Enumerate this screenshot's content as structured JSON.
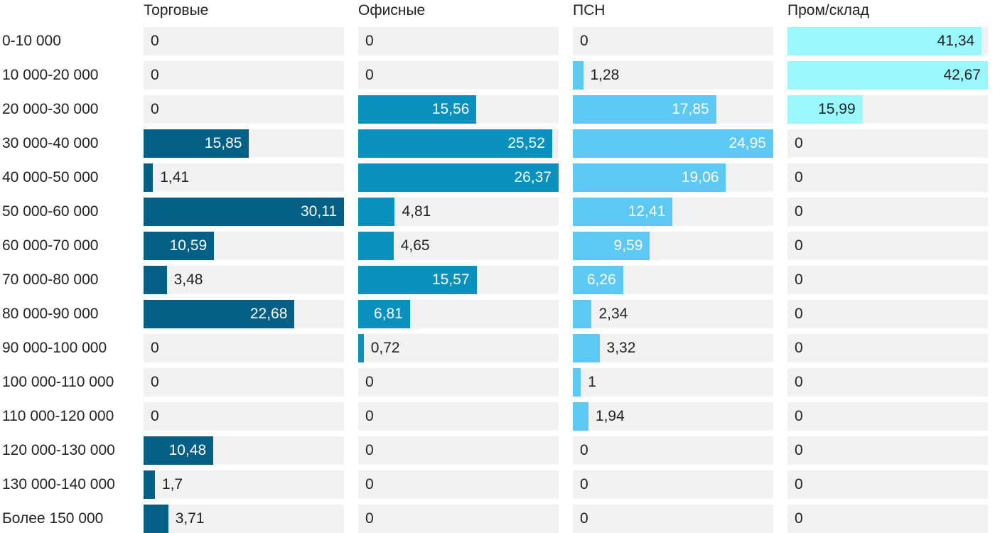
{
  "chart_data": {
    "type": "bar",
    "orientation": "horizontal",
    "layout": "small-multiples",
    "value_format": "comma-decimal",
    "categories": [
      "0-10 000",
      "10 000-20 000",
      "20 000-30 000",
      "30 000-40 000",
      "40 000-50 000",
      "50 000-60 000",
      "60 000-70 000",
      "70 000-80 000",
      "80 000-90 000",
      "90 000-100 000",
      "100 000-110 000",
      "110 000-120 000",
      "120 000-130 000",
      "130 000-140 000",
      "Более 150 000"
    ],
    "series": [
      {
        "name": "Торговые",
        "color": "#045f87",
        "max": 30.11,
        "values": [
          0,
          0,
          0,
          15.85,
          1.41,
          30.11,
          10.59,
          3.48,
          22.68,
          0,
          0,
          0,
          10.48,
          1.7,
          3.71
        ]
      },
      {
        "name": "Офисные",
        "color": "#0891bd",
        "max": 26.37,
        "values": [
          0,
          0,
          15.56,
          25.52,
          26.37,
          4.81,
          4.65,
          15.57,
          6.81,
          0.72,
          0,
          0,
          0,
          0,
          0
        ]
      },
      {
        "name": "ПСН",
        "color": "#5ec8f5",
        "max": 24.95,
        "values": [
          0,
          1.28,
          17.85,
          24.95,
          19.06,
          12.41,
          9.59,
          6.26,
          2.34,
          3.32,
          1,
          1.94,
          0,
          0,
          0
        ]
      },
      {
        "name": "Пром/склад",
        "color": "#9bf9fe",
        "max": 42.67,
        "values": [
          41.34,
          42.67,
          15.99,
          0,
          0,
          0,
          0,
          0,
          0,
          0,
          0,
          0,
          0,
          0,
          0
        ]
      }
    ],
    "colors": {
      "track": "#f1f1f1",
      "text_dark": "#222222",
      "text_light": "#ffffff"
    }
  }
}
